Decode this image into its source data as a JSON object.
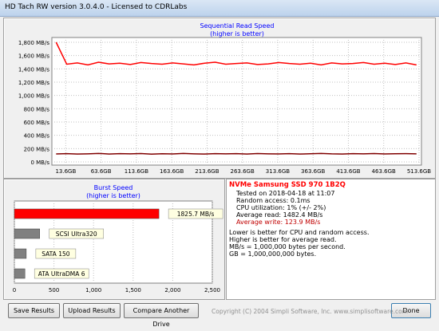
{
  "window": {
    "title": "HD Tach RW version 3.0.4.0 - Licensed to CDRLabs"
  },
  "read_chart": {
    "type": "line",
    "title": "Sequential Read Speed",
    "subtitle": "(higher is better)",
    "ylim": [
      -48,
      1872
    ],
    "yticks": [
      {
        "value": 0,
        "label": "0 MB/s"
      },
      {
        "value": 200,
        "label": "200 MB/s"
      },
      {
        "value": 400,
        "label": "400 MB/s"
      },
      {
        "value": 600,
        "label": "600 MB/s"
      },
      {
        "value": 800,
        "label": "800 MB/s"
      },
      {
        "value": 1000,
        "label": "1,000 MB/s"
      },
      {
        "value": 1200,
        "label": "1,200 MB/s"
      },
      {
        "value": 1400,
        "label": "1,400 MB/s"
      },
      {
        "value": 1600,
        "label": "1,600 MB/s"
      },
      {
        "value": 1800,
        "label": "1,800 MB/s"
      }
    ],
    "xlim": [
      -6,
      517
    ],
    "xticks": [
      {
        "value": 13.6,
        "label": "13.6GB"
      },
      {
        "value": 63.6,
        "label": "63.6GB"
      },
      {
        "value": 113.6,
        "label": "113.6GB"
      },
      {
        "value": 163.6,
        "label": "163.6GB"
      },
      {
        "value": 213.6,
        "label": "213.6GB"
      },
      {
        "value": 263.6,
        "label": "263.6GB"
      },
      {
        "value": 313.6,
        "label": "313.6GB"
      },
      {
        "value": 363.6,
        "label": "363.6GB"
      },
      {
        "value": 413.6,
        "label": "413.6GB"
      },
      {
        "value": 463.6,
        "label": "463.6GB"
      },
      {
        "value": 513.6,
        "label": "513.6GB"
      }
    ],
    "grid": true,
    "x": [
      0,
      15,
      30,
      45,
      60,
      75,
      90,
      105,
      120,
      135,
      150,
      165,
      180,
      195,
      210,
      225,
      240,
      255,
      270,
      285,
      300,
      315,
      330,
      345,
      360,
      375,
      390,
      405,
      420,
      435,
      450,
      465,
      480,
      495,
      510
    ],
    "series": [
      {
        "color": "#ff0000",
        "values": [
          1800,
          1470,
          1490,
          1460,
          1500,
          1475,
          1485,
          1465,
          1495,
          1480,
          1470,
          1490,
          1475,
          1460,
          1485,
          1500,
          1470,
          1480,
          1490,
          1465,
          1475,
          1495,
          1480,
          1470,
          1485,
          1460,
          1490,
          1475,
          1480,
          1495,
          1470,
          1485,
          1465,
          1490,
          1460
        ]
      },
      {
        "color": "#800000",
        "values": [
          120,
          125,
          118,
          122,
          128,
          119,
          124,
          121,
          126,
          117,
          123,
          120,
          127,
          122,
          118,
          125,
          121,
          124,
          119,
          126,
          122,
          120,
          125,
          118,
          123,
          127,
          121,
          119,
          124,
          122,
          126,
          120,
          123,
          125,
          121
        ]
      }
    ]
  },
  "burst_chart": {
    "type": "bar",
    "title": "Burst Speed",
    "subtitle": "(higher is better)",
    "xlim": [
      0,
      2500
    ],
    "xticks": [
      0,
      500,
      {
        "value": 1000,
        "label": "1,000"
      },
      {
        "value": 1500,
        "label": "1,500"
      },
      {
        "value": 2000,
        "label": "2,000"
      },
      {
        "value": 2500,
        "label": "2,500"
      }
    ],
    "grid": true,
    "bars": [
      {
        "value": 1825.7,
        "value_label": "1825.7 MB/s",
        "color": "#ff0000"
      },
      {
        "name": "SCSI Ultra320",
        "value": 320,
        "color": "#808080"
      },
      {
        "name": "SATA 150",
        "value": 150,
        "color": "#808080"
      },
      {
        "name": "ATA UltraDMA 6",
        "value": 133,
        "color": "#808080"
      }
    ]
  },
  "info": {
    "drive": "NVMe Samsung SSD 970 1B2Q",
    "lines": [
      "Tested on 2018-04-18 at 11:07",
      "Random access: 0.1ms",
      "CPU utilization: 1% (+/- 2%)",
      "Average read: 1482.4 MB/s"
    ],
    "write_line": "Average write: 123.9 MB/s",
    "notes": [
      "Lower is better for CPU and random access.",
      "Higher is better for average read.",
      "MB/s = 1,000,000 bytes per second.",
      "GB = 1,000,000,000 bytes."
    ]
  },
  "buttons": [
    "Save Results",
    "Upload Results",
    "Compare Another Drive",
    "Done"
  ],
  "copyright": "Copyright (C) 2004 Simpli Software, Inc. www.simplisoftware.com"
}
